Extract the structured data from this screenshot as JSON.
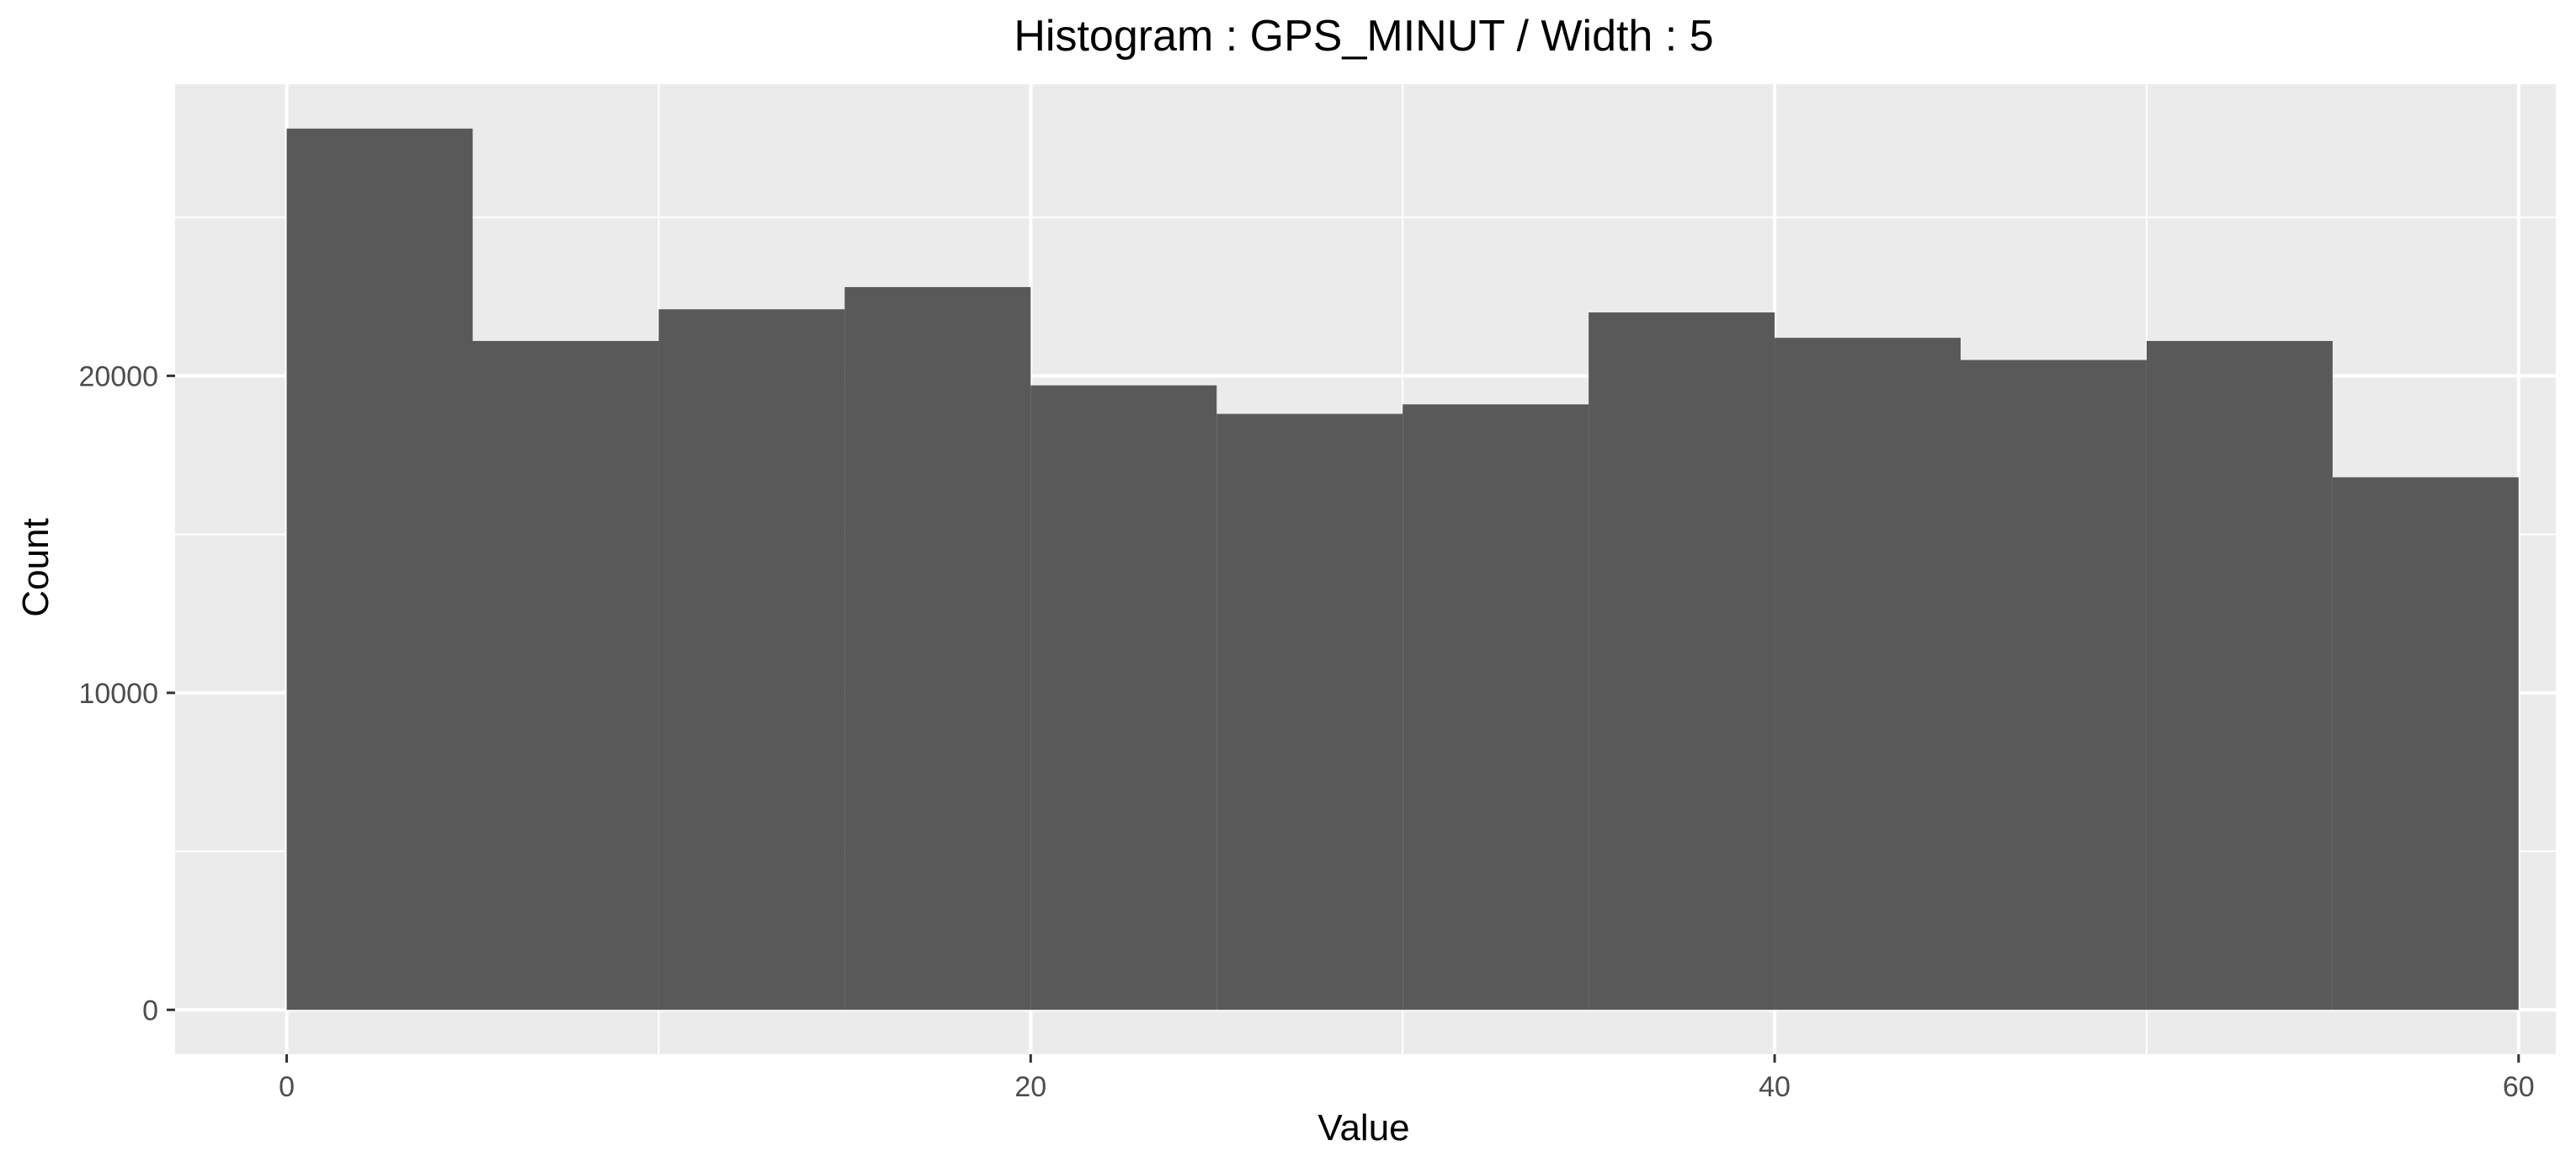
{
  "chart_data": {
    "type": "bar",
    "title": "Histogram : GPS_MINUT / Width : 5",
    "xlabel": "Value",
    "ylabel": "Count",
    "bin_width": 5,
    "bins": [
      {
        "x0": 0,
        "x1": 5,
        "count": 27800
      },
      {
        "x0": 5,
        "x1": 10,
        "count": 21100
      },
      {
        "x0": 10,
        "x1": 15,
        "count": 22100
      },
      {
        "x0": 15,
        "x1": 20,
        "count": 22800
      },
      {
        "x0": 20,
        "x1": 25,
        "count": 19700
      },
      {
        "x0": 25,
        "x1": 30,
        "count": 18800
      },
      {
        "x0": 30,
        "x1": 35,
        "count": 19100
      },
      {
        "x0": 35,
        "x1": 40,
        "count": 22000
      },
      {
        "x0": 40,
        "x1": 45,
        "count": 21200
      },
      {
        "x0": 45,
        "x1": 50,
        "count": 20500
      },
      {
        "x0": 50,
        "x1": 55,
        "count": 21100
      },
      {
        "x0": 55,
        "x1": 60,
        "count": 16800
      }
    ],
    "xlim": [
      -3,
      61
    ],
    "ylim": [
      -1400,
      29200
    ],
    "x_major_ticks": [
      0,
      20,
      40,
      60
    ],
    "x_minor_ticks": [
      10,
      30,
      50
    ],
    "x_tick_labels": [
      "0",
      "20",
      "40",
      "60"
    ],
    "y_major_ticks": [
      0,
      10000,
      20000
    ],
    "y_minor_ticks": [
      5000,
      15000,
      25000
    ],
    "y_tick_labels": [
      "0",
      "10000",
      "20000"
    ],
    "grid": true,
    "colors": {
      "bar": "#595959",
      "panel": "#ebebeb",
      "grid": "#ffffff",
      "tick_text": "#4d4d4d",
      "tick_mark": "#333333"
    }
  }
}
